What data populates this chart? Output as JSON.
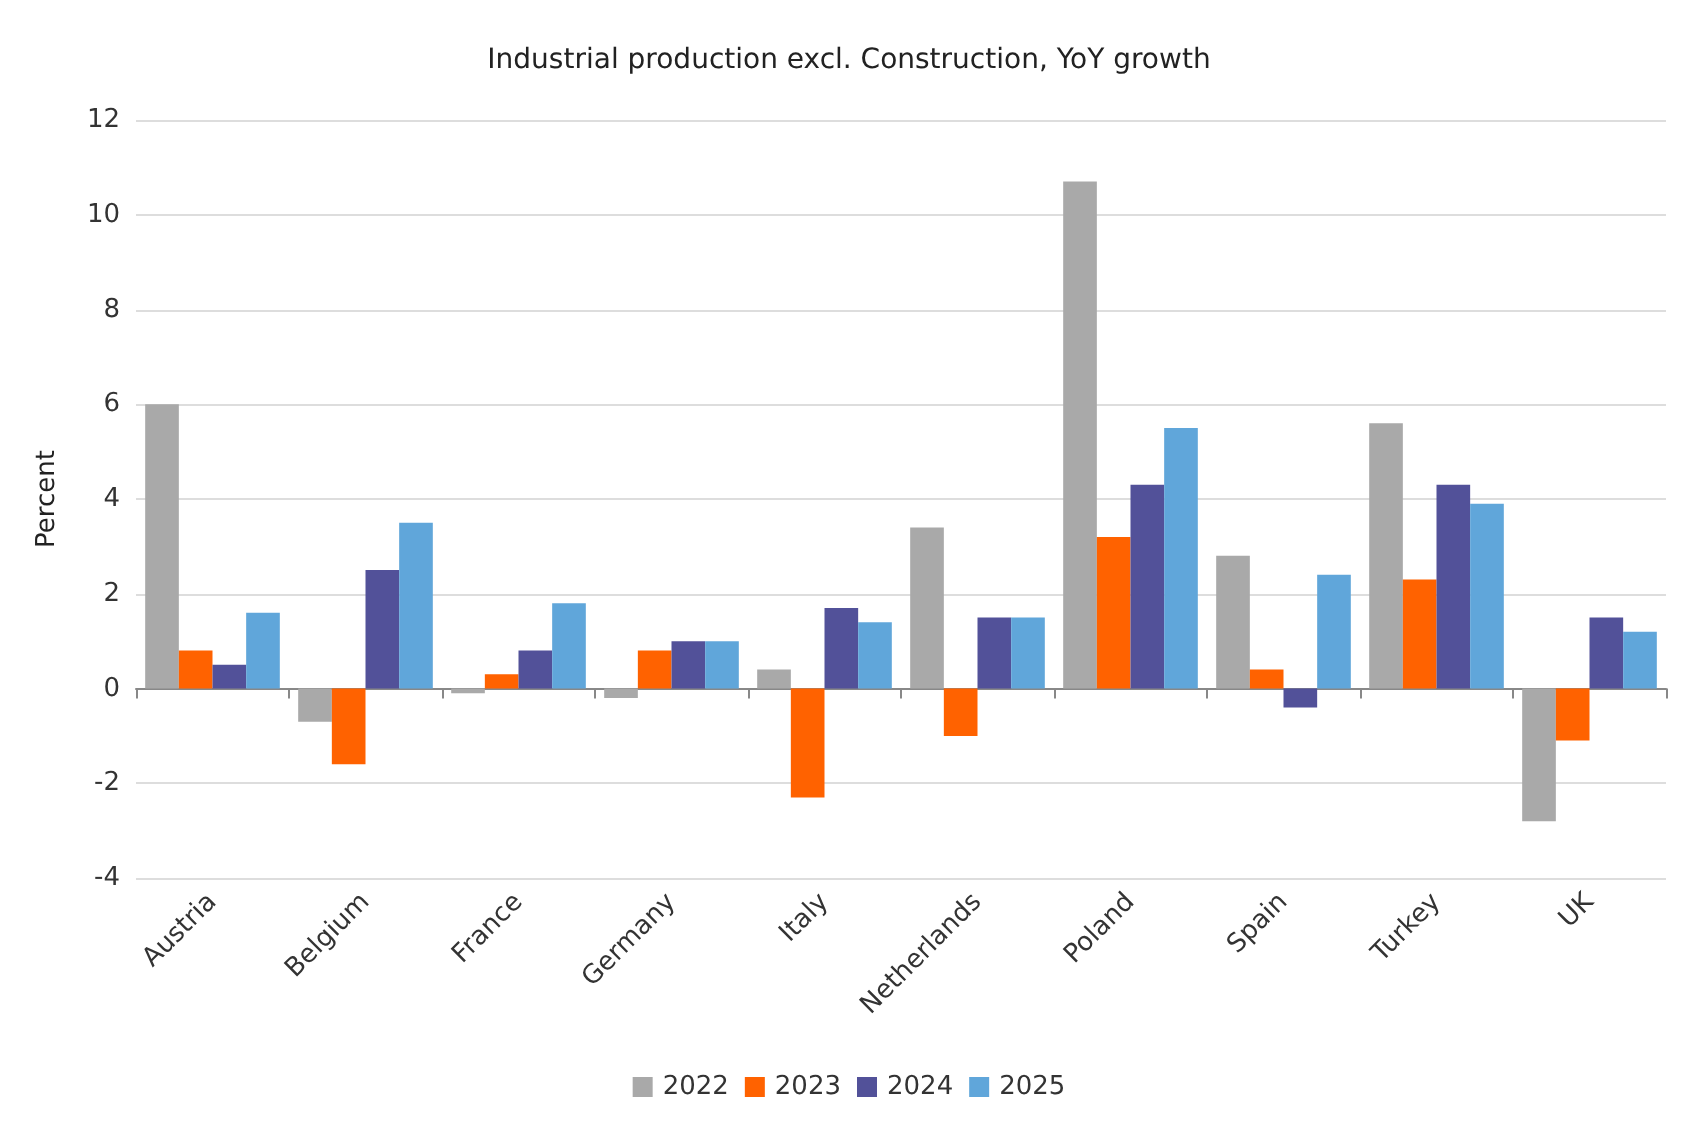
{
  "chart_data": {
    "type": "bar",
    "title": "Industrial production excl. Construction, YoY growth",
    "ylabel": "Percent",
    "categories": [
      "Austria",
      "Belgium",
      "France",
      "Germany",
      "Italy",
      "Netherlands",
      "Poland",
      "Spain",
      "Turkey",
      "UK"
    ],
    "series": [
      {
        "name": "2022",
        "color": "#a9a9a9",
        "values": [
          6.0,
          -0.7,
          -0.1,
          -0.2,
          0.4,
          3.4,
          10.7,
          2.8,
          5.6,
          -2.8
        ]
      },
      {
        "name": "2023",
        "color": "#ff6200",
        "values": [
          0.8,
          -1.6,
          0.3,
          0.8,
          -2.3,
          -1.0,
          3.2,
          0.4,
          2.3,
          -1.1
        ]
      },
      {
        "name": "2024",
        "color": "#525199",
        "values": [
          0.5,
          2.5,
          0.8,
          1.0,
          1.7,
          1.5,
          4.3,
          -0.4,
          4.3,
          1.5
        ]
      },
      {
        "name": "2025",
        "color": "#60a6da",
        "values": [
          1.6,
          3.5,
          1.8,
          1.0,
          1.4,
          1.5,
          5.5,
          2.4,
          3.9,
          1.2
        ]
      }
    ],
    "ylim": [
      -4,
      12
    ],
    "yticks": [
      -4,
      -2,
      0,
      2,
      4,
      6,
      8,
      10,
      12
    ],
    "grid": "y",
    "legend": "bottom"
  }
}
